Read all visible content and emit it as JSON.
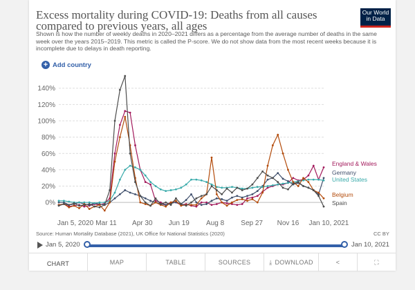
{
  "header": {
    "title": "Excess mortality during COVID-19: Deaths from all causes compared to previous years, all ages",
    "subtitle": "Shown is how the number of weekly deaths in 2020–2021 differs as a percentage from the average number of deaths in the same week over the years 2015–2019. This metric is called the P-score. We do not show data from the most recent weeks because it is incomplete due to delays in death reporting.",
    "logo_line1": "Our World",
    "logo_line2": "in Data",
    "add_country": "Add country"
  },
  "footer": {
    "source": "Source: Human Mortality Database (2021), UK Office for National Statistics (2020)",
    "license": "CC BY"
  },
  "timeline": {
    "start": "Jan 5, 2020",
    "end": "Jan 10, 2021"
  },
  "tabs": {
    "chart": "CHART",
    "map": "MAP",
    "table": "TABLE",
    "sources": "SOURCES",
    "download": "DOWNLOAD"
  },
  "chart_data": {
    "type": "line",
    "y_tick_labels": [
      "0%",
      "20%",
      "40%",
      "60%",
      "80%",
      "100%",
      "120%",
      "140%"
    ],
    "ylim": [
      -10,
      155
    ],
    "x_tick_labels": [
      "Jan 5, 2020",
      "Mar 11",
      "Apr 30",
      "Jun 19",
      "Aug 8",
      "Sep 27",
      "Nov 16",
      "Jan 10, 2021"
    ],
    "x_tick_weeks": [
      0,
      9.3,
      16.4,
      23.6,
      30.7,
      37.9,
      45,
      53
    ],
    "grid": true,
    "series": [
      {
        "name": "England & Wales",
        "color": "#a2195b",
        "values": [
          -3,
          -2,
          -5,
          -4,
          -3,
          -5,
          -4,
          -2,
          -3,
          -1,
          5,
          60,
          95,
          112,
          110,
          70,
          40,
          25,
          22,
          2,
          0,
          -3,
          0,
          0,
          -3,
          -2,
          -4,
          -5,
          0,
          0,
          -3,
          -2,
          0,
          -1,
          -2,
          -3,
          -2,
          5,
          6,
          8,
          13,
          18,
          20,
          22,
          22,
          24,
          30,
          27,
          28,
          33,
          45,
          28,
          43
        ]
      },
      {
        "name": "Germany",
        "color": "#3e4e6b",
        "values": [
          0,
          0,
          -3,
          -2,
          0,
          -2,
          -3,
          -1,
          -2,
          -3,
          0,
          5,
          10,
          15,
          12,
          10,
          8,
          5,
          2,
          0,
          -2,
          -3,
          -1,
          0,
          -2,
          3,
          10,
          0,
          -3,
          -2,
          2,
          5,
          4,
          2,
          6,
          8,
          6,
          8,
          10,
          14,
          20,
          28,
          30,
          36,
          29,
          26,
          22,
          24,
          20,
          18,
          15,
          10,
          30
        ]
      },
      {
        "name": "United States",
        "color": "#38aaaa",
        "values": [
          2,
          2,
          1,
          0,
          0,
          0,
          0,
          -1,
          0,
          0,
          2,
          12,
          28,
          40,
          45,
          43,
          40,
          33,
          25,
          20,
          16,
          14,
          15,
          16,
          18,
          22,
          28,
          28,
          27,
          25,
          22,
          19,
          18,
          18,
          19,
          18,
          17,
          17,
          18,
          19,
          19,
          20,
          21,
          22,
          23,
          24,
          25,
          26,
          27,
          28,
          28,
          28,
          27
        ]
      },
      {
        "name": "Belgium",
        "color": "#b34b0b",
        "values": [
          -3,
          -2,
          -6,
          -4,
          -7,
          -2,
          -8,
          -5,
          -3,
          -10,
          0,
          50,
          80,
          105,
          70,
          30,
          0,
          -2,
          -4,
          0,
          -3,
          -5,
          0,
          2,
          -4,
          -3,
          -3,
          -3,
          5,
          10,
          55,
          10,
          0,
          -4,
          0,
          3,
          4,
          2,
          4,
          0,
          12,
          45,
          70,
          83,
          60,
          40,
          25,
          20,
          30,
          25,
          15,
          12,
          5
        ]
      },
      {
        "name": "Spain",
        "color": "#4c4c4c",
        "values": [
          -4,
          -2,
          -3,
          -1,
          -4,
          -3,
          -2,
          -5,
          -6,
          -3,
          15,
          100,
          138,
          155,
          60,
          25,
          8,
          0,
          -4,
          5,
          -2,
          0,
          -3,
          5,
          -2,
          -4,
          0,
          5,
          8,
          10,
          20,
          15,
          10,
          17,
          12,
          18,
          15,
          17,
          22,
          30,
          38,
          33,
          30,
          25,
          18,
          16,
          23,
          25,
          20,
          18,
          15,
          8,
          -5
        ]
      }
    ]
  }
}
